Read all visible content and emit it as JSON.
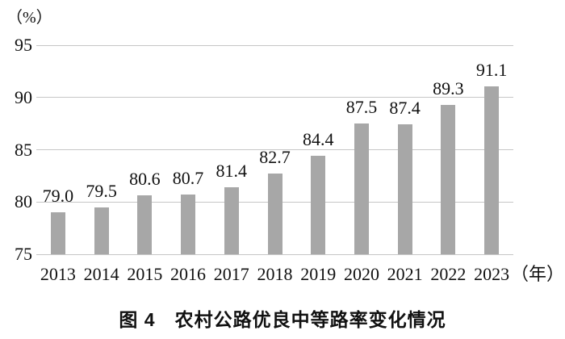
{
  "chart_data": {
    "type": "bar",
    "title": "图 4　农村公路优良中等路率变化情况",
    "categories": [
      "2013",
      "2014",
      "2015",
      "2016",
      "2017",
      "2018",
      "2019",
      "2020",
      "2021",
      "2022",
      "2023"
    ],
    "values": [
      79.0,
      79.5,
      80.6,
      80.7,
      81.4,
      82.7,
      84.4,
      87.5,
      87.4,
      89.3,
      91.1
    ],
    "value_labels": [
      "79.0",
      "79.5",
      "80.6",
      "80.7",
      "81.4",
      "82.7",
      "84.4",
      "87.5",
      "87.4",
      "89.3",
      "91.1"
    ],
    "ylabel": "（%）",
    "xlabel": "（年）",
    "ylim": [
      75,
      95
    ],
    "yticks": [
      95,
      90,
      85,
      80,
      75
    ],
    "grid": true,
    "legend": "none",
    "bar_color": "#a7a7a7",
    "gridline_color": "#c6c6c6",
    "text_color": "#111111"
  }
}
